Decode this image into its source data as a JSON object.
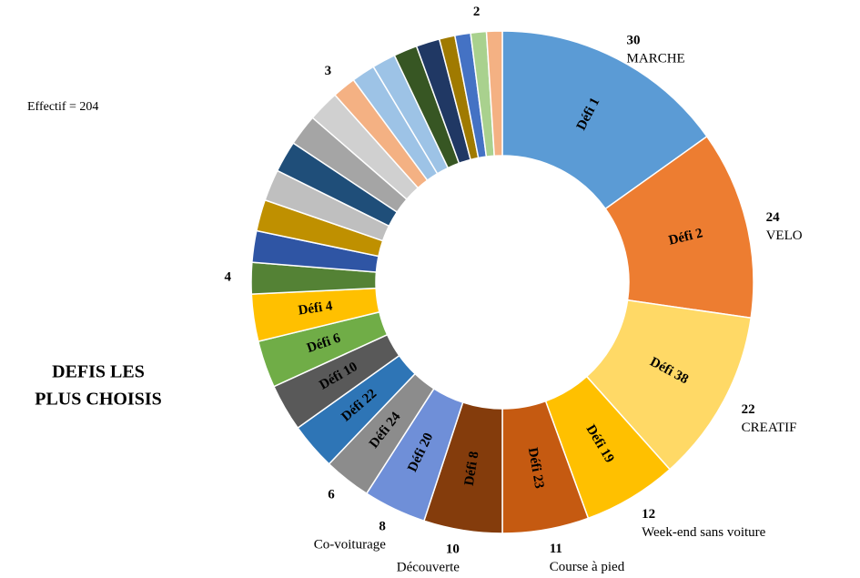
{
  "chart_data": {
    "type": "donut",
    "title": [
      "DEFIS LES",
      "PLUS CHOISIS"
    ],
    "annotation": "Effectif = 204",
    "categories": [
      "Défi 1",
      "Défi 2",
      "Défi 38",
      "Défi 19",
      "Défi 23",
      "Défi 8",
      "Défi 20",
      "Défi 24",
      "Défi 22",
      "Défi 10",
      "Défi 6",
      "Défi 4",
      null,
      null,
      null,
      null,
      null,
      null,
      null,
      null,
      null,
      null,
      null,
      null,
      null,
      null,
      null,
      null
    ],
    "values": [
      30,
      24,
      22,
      12,
      11,
      10,
      8,
      6,
      6,
      6,
      6,
      6,
      4,
      4,
      4,
      4,
      4,
      4,
      4,
      3,
      3,
      3,
      3,
      3,
      2,
      2,
      2,
      2
    ],
    "value_labels": [
      "30",
      "24",
      "22",
      "12",
      "11",
      "10",
      "8",
      "6",
      null,
      null,
      null,
      null,
      "4",
      null,
      null,
      null,
      null,
      null,
      null,
      "3",
      null,
      null,
      null,
      null,
      null,
      null,
      "2",
      null
    ],
    "names": [
      "MARCHE",
      "VELO",
      "CREATIF",
      "Week-end sans voiture",
      "Course à pied",
      "Découverte",
      "Co-voiturage",
      null,
      null,
      null,
      null,
      null,
      null,
      null,
      null,
      null,
      null,
      null,
      null,
      null,
      null,
      null,
      null,
      null,
      null,
      null,
      null,
      null
    ],
    "colors": [
      "#5b9bd5",
      "#ed7d31",
      "#ffd966",
      "#ffc000",
      "#c55a11",
      "#843c0c",
      "#6f8fd8",
      "#8c8c8c",
      "#2e75b6",
      "#595959",
      "#70ad47",
      "#ffc000",
      "#548235",
      "#2f55a4",
      "#bf9000",
      "#bfbfbf",
      "#1f4e79",
      "#a5a5a5",
      "#d0d0d0",
      "#f4b183",
      "#9dc3e6",
      "#9dc3e6",
      "#375623",
      "#203864",
      "#a07a00",
      "#4472c4",
      "#a9d18e",
      "#f4b183"
    ]
  }
}
